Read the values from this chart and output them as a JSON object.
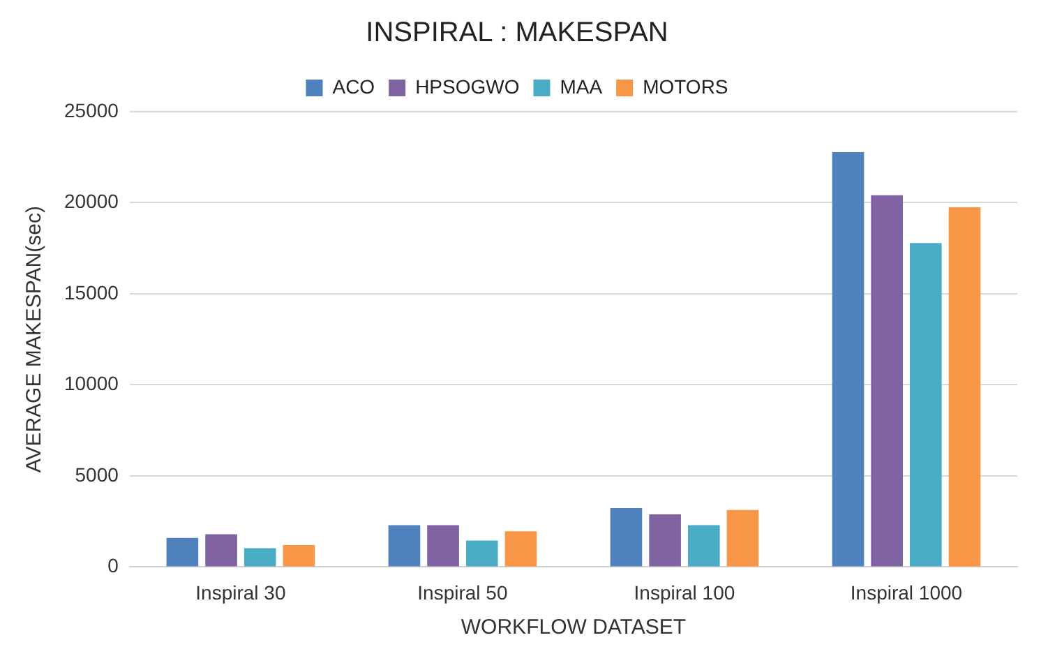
{
  "chart_data": {
    "type": "bar",
    "title": "INSPIRAL : MAKESPAN",
    "xlabel": "WORKFLOW DATASET",
    "ylabel": "AVERAGE MAKESPAN(sec)",
    "categories": [
      "Inspiral 30",
      "Inspiral 50",
      "Inspiral 100",
      "Inspiral 1000"
    ],
    "series": [
      {
        "name": "ACO",
        "color": "#4f81bd",
        "values": [
          1600,
          2300,
          3230,
          22780
        ]
      },
      {
        "name": "HPSOGWO",
        "color": "#8064a2",
        "values": [
          1800,
          2300,
          2890,
          20410
        ]
      },
      {
        "name": "MAA",
        "color": "#4bacc6",
        "values": [
          1030,
          1450,
          2300,
          17790
        ]
      },
      {
        "name": "MOTORS",
        "color": "#f79646",
        "values": [
          1200,
          1960,
          3130,
          19750
        ]
      }
    ],
    "ylim": [
      0,
      25000
    ],
    "yticks": [
      0,
      5000,
      10000,
      15000,
      20000,
      25000
    ],
    "grid": "y",
    "legend": "top"
  }
}
